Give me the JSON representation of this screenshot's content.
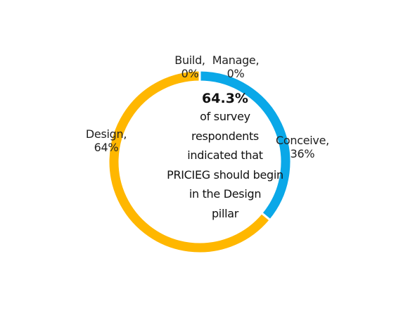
{
  "chart_data": {
    "type": "pie",
    "categories": [
      "Conceive",
      "Design",
      "Build",
      "Manage"
    ],
    "values": [
      36,
      64,
      0,
      0
    ],
    "colors": [
      "#0AA8E8",
      "#FFB700",
      "#0AA8E8",
      "#0AA8E8"
    ],
    "labels": [
      {
        "name": "Conceive,",
        "value": "36%"
      },
      {
        "name": "Design,",
        "value": "64%"
      },
      {
        "name": "Build,",
        "value": "0%"
      },
      {
        "name": "Manage,",
        "value": "0%"
      }
    ],
    "center": {
      "headline": "64.3%",
      "lines": [
        "of survey",
        "respondents",
        "indicated that",
        "PRICIEG should begin",
        "in the Design",
        "pillar"
      ]
    }
  }
}
